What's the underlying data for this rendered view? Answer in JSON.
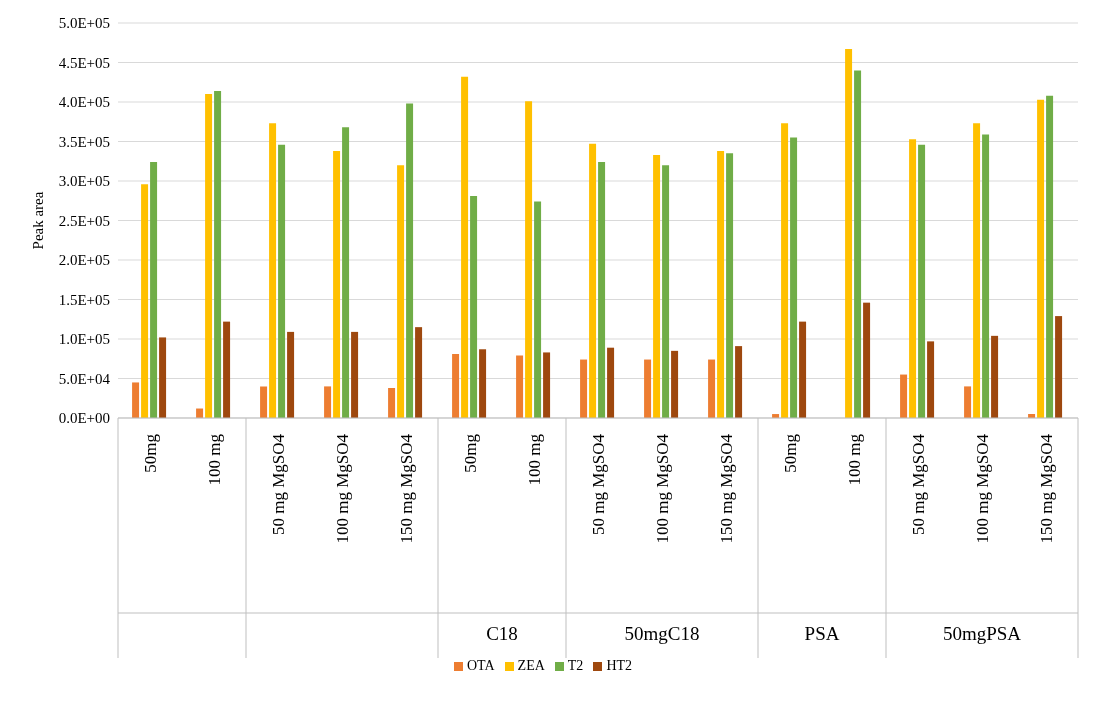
{
  "chart_data": {
    "type": "bar",
    "ylabel": "Peak area",
    "categories": [
      "50mg",
      "100 mg",
      "50 mg MgSO4",
      "100 mg MgSO4",
      "150 mg MgSO4",
      "50mg",
      "100 mg",
      "50 mg MgSO4",
      "100 mg MgSO4",
      "150 mg MgSO4",
      "50mg",
      "100 mg",
      "50 mg MgSO4",
      "100 mg MgSO4",
      "150 mg MgSO4"
    ],
    "annotations": [
      null,
      null,
      "C18",
      "50mgC18",
      "PSA",
      "50mgPSA"
    ],
    "series": [
      {
        "name": "OTA",
        "color": "#ed7d31",
        "values": [
          45000,
          12000,
          40000,
          40000,
          38000,
          81000,
          79000,
          74000,
          74000,
          74000,
          5000,
          0,
          55000,
          40000,
          5000
        ]
      },
      {
        "name": "ZEA",
        "color": "#ffc000",
        "values": [
          296000,
          410000,
          373000,
          338000,
          320000,
          432000,
          401000,
          347000,
          333000,
          338000,
          373000,
          467000,
          353000,
          373000,
          403000
        ]
      },
      {
        "name": "T2",
        "color": "#70ad47",
        "values": [
          324000,
          414000,
          346000,
          368000,
          398000,
          281000,
          274000,
          324000,
          320000,
          335000,
          355000,
          440000,
          346000,
          359000,
          408000
        ]
      },
      {
        "name": "HT2",
        "color": "#9e480e",
        "values": [
          102000,
          122000,
          109000,
          109000,
          115000,
          87000,
          83000,
          89000,
          85000,
          91000,
          122000,
          146000,
          97000,
          104000,
          129000
        ]
      }
    ],
    "ylim": [
      0,
      500000
    ],
    "yticks": [
      {
        "value": 0,
        "label": "0.0E+00"
      },
      {
        "value": 50000,
        "label": "5.0E+04"
      },
      {
        "value": 100000,
        "label": "1.0E+05"
      },
      {
        "value": 150000,
        "label": "1.5E+05"
      },
      {
        "value": 200000,
        "label": "2.0E+05"
      },
      {
        "value": 250000,
        "label": "2.5E+05"
      },
      {
        "value": 300000,
        "label": "3.0E+05"
      },
      {
        "value": 350000,
        "label": "3.5E+05"
      },
      {
        "value": 400000,
        "label": "4.0E+05"
      },
      {
        "value": 450000,
        "label": "4.5E+05"
      },
      {
        "value": 500000,
        "label": "5.0E+05"
      }
    ],
    "grid": "y",
    "legend": "bottom"
  }
}
